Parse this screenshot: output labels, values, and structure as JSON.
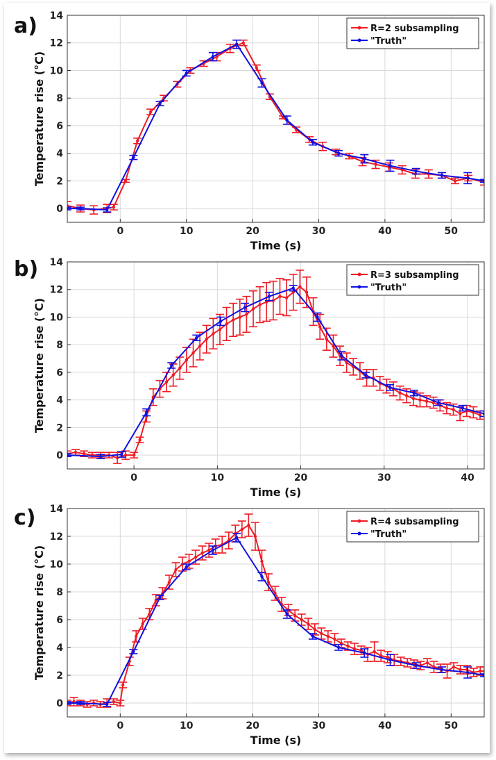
{
  "colors": {
    "red": "#ee1c25",
    "blue": "#1010e0",
    "grid": "#d9d9d9"
  },
  "chart_data": [
    {
      "panel_label": "a)",
      "type": "line",
      "xlabel": "Time (s)",
      "ylabel": "Temperature rise (°C)",
      "xlim": [
        -8,
        55
      ],
      "ylim": [
        -1,
        14
      ],
      "xticks": [
        0,
        10,
        20,
        30,
        40,
        50
      ],
      "yticks": [
        0,
        2,
        4,
        6,
        8,
        10,
        12,
        14
      ],
      "legend_position": "top-right",
      "series": [
        {
          "name": "R=2 subsampling",
          "color": "red",
          "x": [
            -8,
            -6,
            -4,
            -2,
            -1,
            0.8,
            2.6,
            4.6,
            6.6,
            8.6,
            10.6,
            12.6,
            14.6,
            16.6,
            18.6,
            20.6,
            22.6,
            24.6,
            26.6,
            28.6,
            30.6,
            32.6,
            34.6,
            36.6,
            38.6,
            40.6,
            42.6,
            44.6,
            46.6,
            48.6,
            50.6,
            52.6,
            55
          ],
          "y": [
            0.2,
            0.0,
            -0.1,
            0.0,
            0.1,
            2.0,
            4.9,
            7.0,
            8.0,
            9.0,
            10.0,
            10.5,
            11.0,
            11.6,
            12.0,
            10.2,
            8.1,
            6.6,
            5.7,
            5.0,
            4.5,
            4.1,
            3.8,
            3.4,
            3.2,
            3.0,
            2.8,
            2.5,
            2.5,
            2.4,
            2.0,
            2.2,
            1.9
          ],
          "err": [
            0.3,
            0.25,
            0.3,
            0.3,
            0.2,
            0.1,
            0.2,
            0.2,
            0.2,
            0.2,
            0.2,
            0.2,
            0.3,
            0.3,
            0.2,
            0.2,
            0.2,
            0.1,
            0.2,
            0.2,
            0.3,
            0.2,
            0.2,
            0.3,
            0.3,
            0.3,
            0.3,
            0.3,
            0.3,
            0.2,
            0.2,
            0.2,
            0.2
          ]
        },
        {
          "name": "\"Truth\"",
          "color": "blue",
          "x": [
            -8,
            -6,
            -2,
            2,
            6,
            10,
            14,
            17.6,
            21.4,
            25.2,
            29.1,
            33.0,
            36.9,
            40.8,
            44.7,
            48.6,
            52.5,
            55
          ],
          "y": [
            0.0,
            0.0,
            -0.1,
            3.7,
            7.6,
            9.8,
            11.0,
            11.9,
            9.1,
            6.4,
            4.8,
            4.0,
            3.6,
            3.1,
            2.7,
            2.4,
            2.2,
            2.0
          ],
          "err": [
            0.1,
            0.1,
            0.15,
            0.15,
            0.15,
            0.2,
            0.3,
            0.3,
            0.3,
            0.3,
            0.2,
            0.2,
            0.3,
            0.4,
            0.2,
            0.2,
            0.4,
            0.1
          ]
        }
      ]
    },
    {
      "panel_label": "b)",
      "type": "line",
      "xlabel": "Time (s)",
      "ylabel": "Temperature rise (°C)",
      "xlim": [
        -8,
        42
      ],
      "ylim": [
        -1,
        14
      ],
      "xticks": [
        0,
        10,
        20,
        30,
        40
      ],
      "yticks": [
        0,
        2,
        4,
        6,
        8,
        10,
        12,
        14
      ],
      "legend_position": "top-right",
      "series": [
        {
          "name": "R=3 subsampling",
          "color": "red",
          "x": [
            -8,
            -7,
            -6,
            -5,
            -4,
            -3,
            -2,
            -1,
            0,
            0.7,
            1.5,
            2.3,
            3.1,
            3.9,
            4.7,
            5.5,
            6.3,
            7.1,
            7.9,
            8.7,
            9.5,
            10.3,
            11.1,
            11.9,
            12.7,
            13.5,
            14.3,
            15.1,
            15.9,
            16.7,
            17.5,
            18.3,
            19.1,
            19.9,
            20.7,
            21.5,
            22.3,
            23.1,
            23.9,
            24.7,
            25.5,
            26.3,
            27.1,
            27.9,
            28.7,
            29.5,
            30.3,
            31.1,
            31.9,
            32.7,
            33.5,
            34.3,
            35.1,
            35.9,
            36.7,
            37.5,
            38.3,
            39.1,
            39.9,
            40.7,
            41.5
          ],
          "y": [
            0.1,
            0.2,
            0.1,
            0.0,
            0.0,
            0.0,
            -0.2,
            0.0,
            0.0,
            1.1,
            2.8,
            4.2,
            4.8,
            5.3,
            5.8,
            6.3,
            6.9,
            7.4,
            7.9,
            8.4,
            8.8,
            9.1,
            9.5,
            9.8,
            10.0,
            10.2,
            10.6,
            10.9,
            11.1,
            11.2,
            11.5,
            11.4,
            11.8,
            12.2,
            11.8,
            10.4,
            9.3,
            8.4,
            7.9,
            7.2,
            6.7,
            6.4,
            6.1,
            5.6,
            5.6,
            5.2,
            5.0,
            4.8,
            4.5,
            4.3,
            4.1,
            4.0,
            3.9,
            3.8,
            3.6,
            3.4,
            3.3,
            3.0,
            3.2,
            3.1,
            2.9
          ],
          "err": [
            0.2,
            0.2,
            0.2,
            0.2,
            0.2,
            0.2,
            0.4,
            0.3,
            0.2,
            0.2,
            0.4,
            0.6,
            0.6,
            0.7,
            0.8,
            0.8,
            0.9,
            1.0,
            1.0,
            1.0,
            1.1,
            1.1,
            1.2,
            1.2,
            1.3,
            1.3,
            1.3,
            1.3,
            1.4,
            1.4,
            1.3,
            1.3,
            1.3,
            1.2,
            1.1,
            1.0,
            0.9,
            0.8,
            0.8,
            0.7,
            0.7,
            0.6,
            0.6,
            0.6,
            0.6,
            0.5,
            0.5,
            0.5,
            0.5,
            0.5,
            0.5,
            0.5,
            0.4,
            0.4,
            0.4,
            0.4,
            0.4,
            0.5,
            0.4,
            0.4,
            0.3
          ]
        },
        {
          "name": "\"Truth\"",
          "color": "blue",
          "x": [
            -8,
            -4,
            -1.5,
            1.5,
            4.5,
            7.5,
            10.4,
            13.3,
            16.2,
            19.1,
            22.0,
            24.9,
            27.8,
            30.7,
            33.6,
            36.5,
            39.4,
            42
          ],
          "y": [
            0.0,
            -0.1,
            0.05,
            3.1,
            6.5,
            8.5,
            9.7,
            10.7,
            11.5,
            12.1,
            10.0,
            7.2,
            5.8,
            4.9,
            4.5,
            3.8,
            3.4,
            3.0
          ],
          "err": [
            0.1,
            0.15,
            0.2,
            0.25,
            0.2,
            0.2,
            0.3,
            0.3,
            0.3,
            0.2,
            0.3,
            0.3,
            0.2,
            0.2,
            0.2,
            0.2,
            0.2,
            0.2
          ]
        }
      ]
    },
    {
      "panel_label": "c)",
      "type": "line",
      "xlabel": "Time (s)",
      "ylabel": "Temperature rise (°C)",
      "xlim": [
        -8,
        55
      ],
      "ylim": [
        -1,
        14
      ],
      "xticks": [
        0,
        10,
        20,
        30,
        40,
        50
      ],
      "yticks": [
        0,
        2,
        4,
        6,
        8,
        10,
        12,
        14
      ],
      "legend_position": "top-right",
      "series": [
        {
          "name": "R=4 subsampling",
          "color": "red",
          "x": [
            -8,
            -7,
            -6,
            -5,
            -4,
            -3,
            -2,
            -1,
            0,
            0.4,
            1.4,
            2.4,
            3.4,
            4.4,
            5.4,
            6.4,
            7.4,
            8.4,
            9.4,
            10.4,
            11.4,
            12.4,
            13.4,
            14.4,
            15.4,
            16.4,
            17.4,
            18.4,
            19.4,
            20.4,
            21.4,
            22.4,
            23.4,
            24.4,
            25.4,
            26.4,
            27.4,
            28.4,
            29.4,
            30.4,
            31.4,
            32.4,
            33.4,
            34.4,
            35.4,
            36.4,
            37.4,
            38.4,
            39.4,
            40.4,
            41.4,
            42.4,
            43.4,
            44.4,
            45.4,
            46.4,
            47.4,
            48.4,
            49.4,
            50.4,
            51.4,
            52.4,
            53.4,
            54.4,
            55
          ],
          "y": [
            0.0,
            0.1,
            0.0,
            -0.1,
            0.0,
            -0.1,
            0.0,
            0.1,
            0.0,
            1.3,
            3.0,
            4.8,
            5.7,
            6.4,
            7.4,
            7.9,
            8.7,
            9.6,
            10.0,
            10.2,
            10.5,
            10.8,
            11.0,
            11.3,
            11.4,
            11.7,
            12.2,
            12.5,
            12.8,
            12.0,
            10.2,
            8.7,
            7.9,
            7.1,
            6.7,
            6.3,
            6.0,
            5.7,
            5.3,
            5.0,
            4.8,
            4.6,
            4.3,
            4.1,
            3.9,
            3.8,
            3.5,
            3.7,
            3.4,
            3.3,
            3.1,
            3.0,
            2.9,
            2.8,
            2.7,
            2.9,
            2.6,
            2.5,
            2.3,
            2.6,
            2.4,
            2.4,
            2.2,
            2.3,
            2.3
          ],
          "err": [
            0.2,
            0.3,
            0.2,
            0.2,
            0.2,
            0.2,
            0.3,
            0.2,
            0.2,
            0.2,
            0.3,
            0.4,
            0.4,
            0.4,
            0.4,
            0.4,
            0.5,
            0.5,
            0.5,
            0.5,
            0.5,
            0.5,
            0.5,
            0.5,
            0.6,
            0.6,
            0.6,
            0.6,
            0.8,
            1.0,
            0.8,
            0.6,
            0.5,
            0.5,
            0.4,
            0.4,
            0.4,
            0.4,
            0.4,
            0.4,
            0.4,
            0.4,
            0.3,
            0.3,
            0.4,
            0.3,
            0.5,
            0.7,
            0.4,
            0.4,
            0.4,
            0.3,
            0.3,
            0.3,
            0.3,
            0.3,
            0.4,
            0.3,
            0.5,
            0.3,
            0.3,
            0.3,
            0.3,
            0.3,
            0.3
          ]
        },
        {
          "name": "\"Truth\"",
          "color": "blue",
          "x": [
            -8,
            -6,
            -2,
            2,
            6,
            10,
            14,
            17.6,
            21.4,
            25.2,
            29.1,
            33.0,
            36.9,
            40.8,
            44.7,
            48.6,
            52.5,
            55
          ],
          "y": [
            0.0,
            0.0,
            -0.1,
            3.7,
            7.6,
            9.8,
            11.0,
            11.9,
            9.1,
            6.4,
            4.8,
            4.0,
            3.6,
            3.1,
            2.7,
            2.4,
            2.2,
            2.0
          ],
          "err": [
            0.1,
            0.1,
            0.15,
            0.15,
            0.15,
            0.2,
            0.3,
            0.3,
            0.3,
            0.3,
            0.2,
            0.2,
            0.3,
            0.4,
            0.2,
            0.2,
            0.4,
            0.1
          ]
        }
      ]
    }
  ]
}
